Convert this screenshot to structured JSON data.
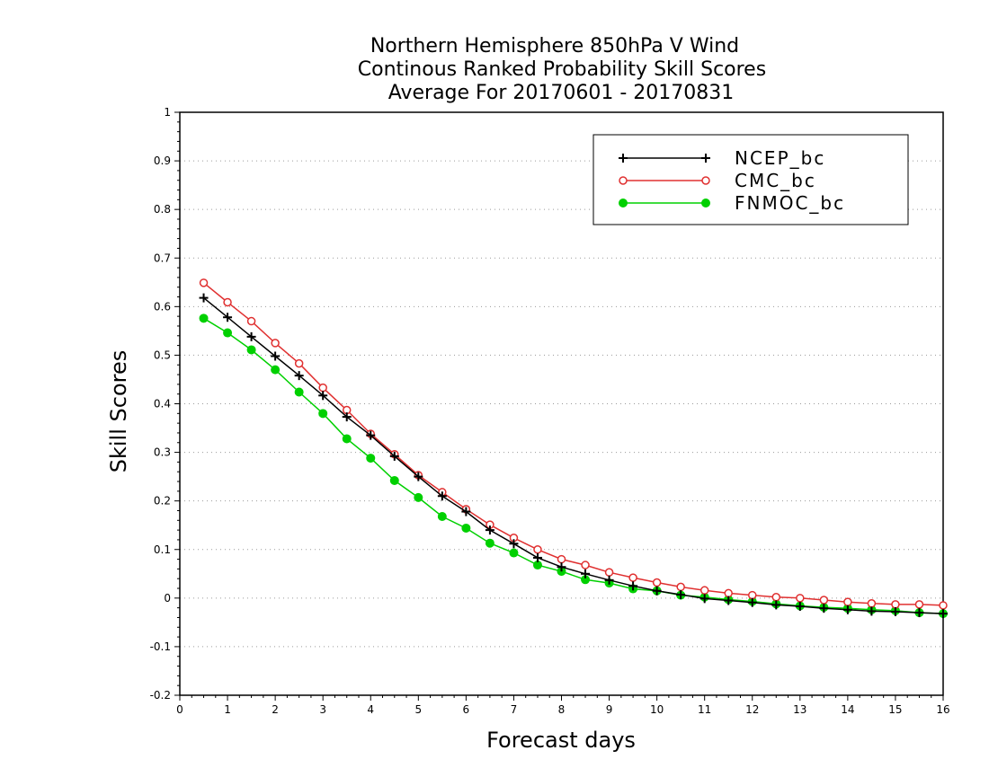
{
  "chart_data": {
    "type": "line",
    "title_lines": [
      "Northern Hemisphere 850hPa V Wind",
      "Continous Ranked Probability Skill Scores",
      "Average For 20170601 - 20170831"
    ],
    "xlabel": "Forecast days",
    "ylabel": "Skill Scores",
    "xlim": [
      0,
      16
    ],
    "ylim": [
      -0.2,
      1
    ],
    "x_ticks": [
      0,
      1,
      2,
      3,
      4,
      5,
      6,
      7,
      8,
      9,
      10,
      11,
      12,
      13,
      14,
      15,
      16
    ],
    "x_tick_labels": [
      "0",
      "1",
      "2",
      "3",
      "4",
      "5",
      "6",
      "7",
      "8",
      "9",
      "10",
      "11",
      "12",
      "13",
      "14",
      "15",
      "16"
    ],
    "y_ticks": [
      -0.2,
      -0.1,
      0,
      0.1,
      0.2,
      0.3,
      0.4,
      0.5,
      0.6,
      0.7,
      0.8,
      0.9,
      1
    ],
    "y_tick_labels": [
      "-0.2",
      "-0.1",
      "0",
      "0.1",
      "0.2",
      "0.3",
      "0.4",
      "0.5",
      "0.6",
      "0.7",
      "0.8",
      "0.9",
      "1"
    ],
    "grid": "horizontal dotted",
    "legend_position": "top-right",
    "x": [
      0.5,
      1,
      1.5,
      2,
      2.5,
      3,
      3.5,
      4,
      4.5,
      5,
      5.5,
      6,
      6.5,
      7,
      7.5,
      8,
      8.5,
      9,
      9.5,
      10,
      10.5,
      11,
      11.5,
      12,
      12.5,
      13,
      13.5,
      14,
      14.5,
      15,
      15.5,
      16
    ],
    "series": [
      {
        "name": "NCEP_bc",
        "color": "#000000",
        "marker": "plus",
        "values": [
          0.618,
          0.578,
          0.538,
          0.498,
          0.458,
          0.417,
          0.373,
          0.335,
          0.292,
          0.25,
          0.21,
          0.178,
          0.14,
          0.112,
          0.083,
          0.064,
          0.05,
          0.037,
          0.025,
          0.015,
          0.007,
          -0.001,
          -0.005,
          -0.009,
          -0.014,
          -0.017,
          -0.021,
          -0.024,
          -0.027,
          -0.028,
          -0.03,
          -0.032
        ]
      },
      {
        "name": "CMC_bc",
        "color": "#e03030",
        "marker": "open-circle",
        "values": [
          0.649,
          0.609,
          0.57,
          0.525,
          0.483,
          0.433,
          0.387,
          0.338,
          0.296,
          0.253,
          0.218,
          0.183,
          0.151,
          0.124,
          0.1,
          0.08,
          0.068,
          0.053,
          0.042,
          0.032,
          0.023,
          0.016,
          0.01,
          0.006,
          0.002,
          0.0,
          -0.004,
          -0.008,
          -0.011,
          -0.013,
          -0.013,
          -0.015
        ]
      },
      {
        "name": "FNMOC_bc",
        "color": "#00d000",
        "marker": "filled-circle",
        "values": [
          0.576,
          0.546,
          0.511,
          0.47,
          0.424,
          0.38,
          0.328,
          0.288,
          0.242,
          0.207,
          0.168,
          0.144,
          0.113,
          0.093,
          0.068,
          0.055,
          0.038,
          0.031,
          0.019,
          0.015,
          0.006,
          0.002,
          -0.003,
          -0.007,
          -0.012,
          -0.016,
          -0.019,
          -0.021,
          -0.024,
          -0.026,
          -0.03,
          -0.032
        ]
      }
    ]
  }
}
